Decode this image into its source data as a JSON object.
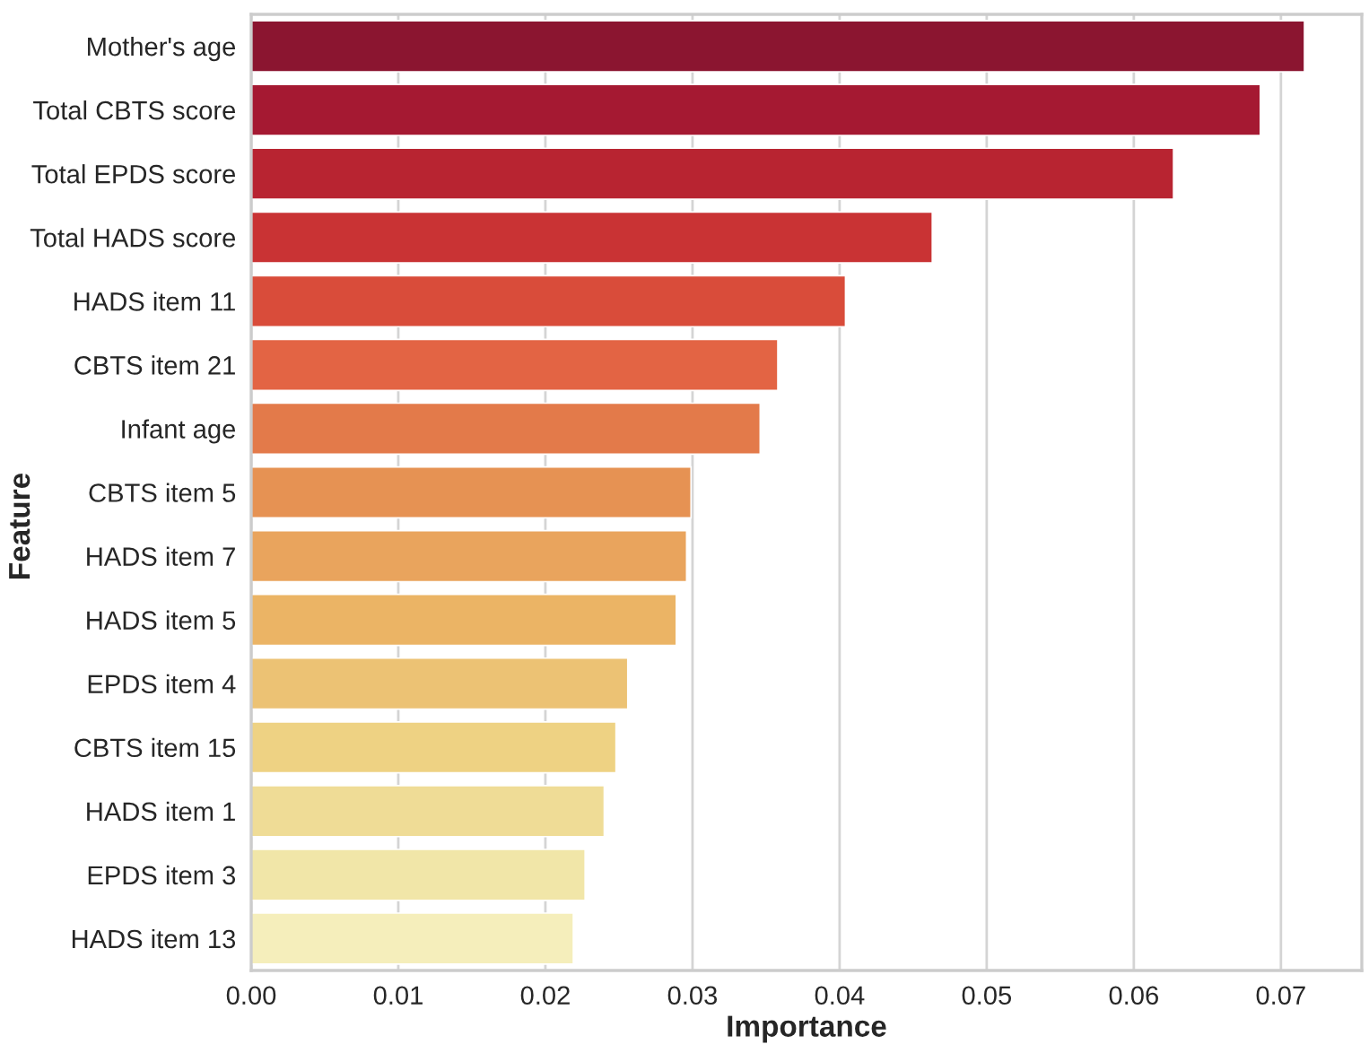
{
  "chart_data": {
    "type": "bar",
    "orientation": "horizontal",
    "xlabel": "Importance",
    "ylabel": "Feature",
    "categories": [
      "Mother's age",
      "Total CBTS score",
      "Total EPDS score",
      "Total HADS score",
      "HADS item 11",
      "CBTS item 21",
      "Infant age",
      "CBTS item 5",
      "HADS item 7",
      "HADS item 5",
      "EPDS item 4",
      "CBTS item 15",
      "HADS item 1",
      "EPDS item 3",
      "HADS item 13"
    ],
    "values": [
      0.0716,
      0.0686,
      0.0627,
      0.0463,
      0.0404,
      0.0358,
      0.0346,
      0.0299,
      0.0296,
      0.0289,
      0.0256,
      0.0248,
      0.024,
      0.0227,
      0.0219
    ],
    "colors": [
      "#8b1530",
      "#a51932",
      "#b82431",
      "#c93334",
      "#d94c3a",
      "#e36444",
      "#e37a4a",
      "#e69253",
      "#e9a45d",
      "#ebb465",
      "#ecc274",
      "#eed283",
      "#efdc96",
      "#f1e6a8",
      "#f5eebb"
    ],
    "xlim": [
      0,
      0.0755
    ],
    "xticks": [
      {
        "value": 0,
        "label": "0.00"
      },
      {
        "value": 0.01,
        "label": "0.01"
      },
      {
        "value": 0.02,
        "label": "0.02"
      },
      {
        "value": 0.03,
        "label": "0.03"
      },
      {
        "value": 0.04,
        "label": "0.04"
      },
      {
        "value": 0.05,
        "label": "0.05"
      },
      {
        "value": 0.06,
        "label": "0.06"
      },
      {
        "value": 0.07,
        "label": "0.07"
      }
    ],
    "grid": "x"
  }
}
